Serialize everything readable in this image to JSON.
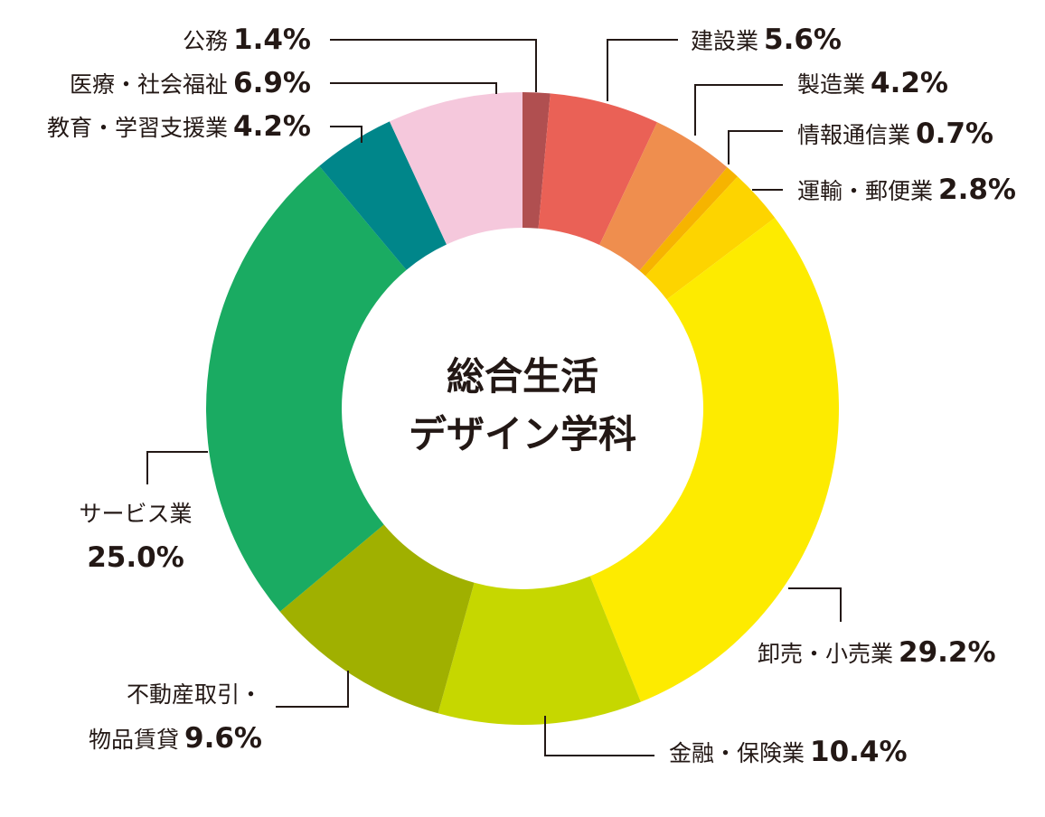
{
  "chart_data": {
    "type": "pie",
    "donut": true,
    "title": "総合生活\nデザイン学科",
    "title_lines": [
      "総合生活",
      "デザイン学科"
    ],
    "start": "12 o'clock, clockwise",
    "slices": [
      {
        "label": "公務",
        "value": 1.4,
        "display": "1.4%",
        "color": "#b04f50"
      },
      {
        "label": "建設業",
        "value": 5.6,
        "display": "5.6%",
        "color": "#ea6156"
      },
      {
        "label": "製造業",
        "value": 4.2,
        "display": "4.2%",
        "color": "#ef8e4e"
      },
      {
        "label": "情報通信業",
        "value": 0.7,
        "display": "0.7%",
        "color": "#f6b400"
      },
      {
        "label": "運輸・郵便業",
        "value": 2.8,
        "display": "2.8%",
        "color": "#fdd400"
      },
      {
        "label": "卸売・小売業",
        "value": 29.2,
        "display": "29.2%",
        "color": "#fdeb00"
      },
      {
        "label": "金融・保険業",
        "value": 10.4,
        "display": "10.4%",
        "color": "#c6d700"
      },
      {
        "label": "不動産取引・物品賃貸",
        "label_lines": [
          "不動産取引・",
          "物品賃貸"
        ],
        "value": 9.6,
        "display": "9.6%",
        "color": "#a0b000"
      },
      {
        "label": "サービス業",
        "value": 25.0,
        "display": "25.0%",
        "color": "#1aab62"
      },
      {
        "label": "教育・学習支援業",
        "value": 4.2,
        "display": "4.2%",
        "color": "#00868a"
      },
      {
        "label": "医療・社会福祉",
        "value": 6.9,
        "display": "6.9%",
        "color": "#f5c8dc"
      }
    ]
  }
}
